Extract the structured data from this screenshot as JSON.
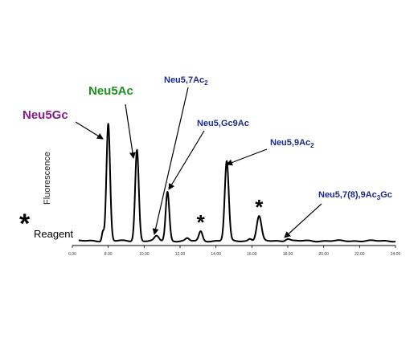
{
  "chart_data": {
    "type": "line",
    "title": "",
    "ylabel": "Fluorescence",
    "xlabel": "",
    "xlim": [
      6,
      24
    ],
    "ylim": [
      0,
      1
    ],
    "x_ticks": [
      "6.00",
      "8.00",
      "10.00",
      "12.00",
      "14.00",
      "16.00",
      "18.00",
      "20.00",
      "22.00",
      "24.00"
    ],
    "peaks": [
      {
        "x": 7.7,
        "y": 0.08,
        "w": 0.06
      },
      {
        "x": 8.0,
        "y": 1.0,
        "w": 0.1
      },
      {
        "x": 9.6,
        "y": 0.78,
        "w": 0.1
      },
      {
        "x": 10.7,
        "y": 0.04,
        "w": 0.12
      },
      {
        "x": 11.3,
        "y": 0.42,
        "w": 0.1
      },
      {
        "x": 12.4,
        "y": 0.02,
        "w": 0.1
      },
      {
        "x": 13.15,
        "y": 0.08,
        "w": 0.1
      },
      {
        "x": 14.6,
        "y": 0.68,
        "w": 0.11
      },
      {
        "x": 15.9,
        "y": 0.02,
        "w": 0.1
      },
      {
        "x": 16.4,
        "y": 0.21,
        "w": 0.13
      },
      {
        "x": 18.0,
        "y": 0.02,
        "w": 0.13
      }
    ],
    "annotations": [
      {
        "id": "neu5gc",
        "text": "Neu5Gc",
        "color": "#8b1a8b",
        "peak_x": 8.0
      },
      {
        "id": "neu5ac",
        "text": "Neu5Ac",
        "color": "#1f8f1f",
        "peak_x": 9.6
      },
      {
        "id": "neu57ac2",
        "main": "Neu5,7Ac",
        "sub": "2",
        "color": "#1a2a8c",
        "peak_x": 10.7
      },
      {
        "id": "neu5gc9ac",
        "text": "Neu5,Gc9Ac",
        "color": "#1a2a8c",
        "peak_x": 11.3
      },
      {
        "id": "neu59ac2",
        "main": "Neu5,9Ac",
        "sub": "2",
        "color": "#1a2a8c",
        "peak_x": 14.6
      },
      {
        "id": "neu5789ac3gc",
        "main": "Neu5,7(8),9Ac",
        "sub": "3",
        "tail": "Gc",
        "color": "#1a2a8c",
        "peak_x": 18.0
      }
    ],
    "reagent_markers": [
      {
        "x": 13.15,
        "symbol": "*"
      },
      {
        "x": 16.4,
        "symbol": "*"
      }
    ],
    "legend": {
      "symbol": "*",
      "label": "Reagent"
    }
  }
}
